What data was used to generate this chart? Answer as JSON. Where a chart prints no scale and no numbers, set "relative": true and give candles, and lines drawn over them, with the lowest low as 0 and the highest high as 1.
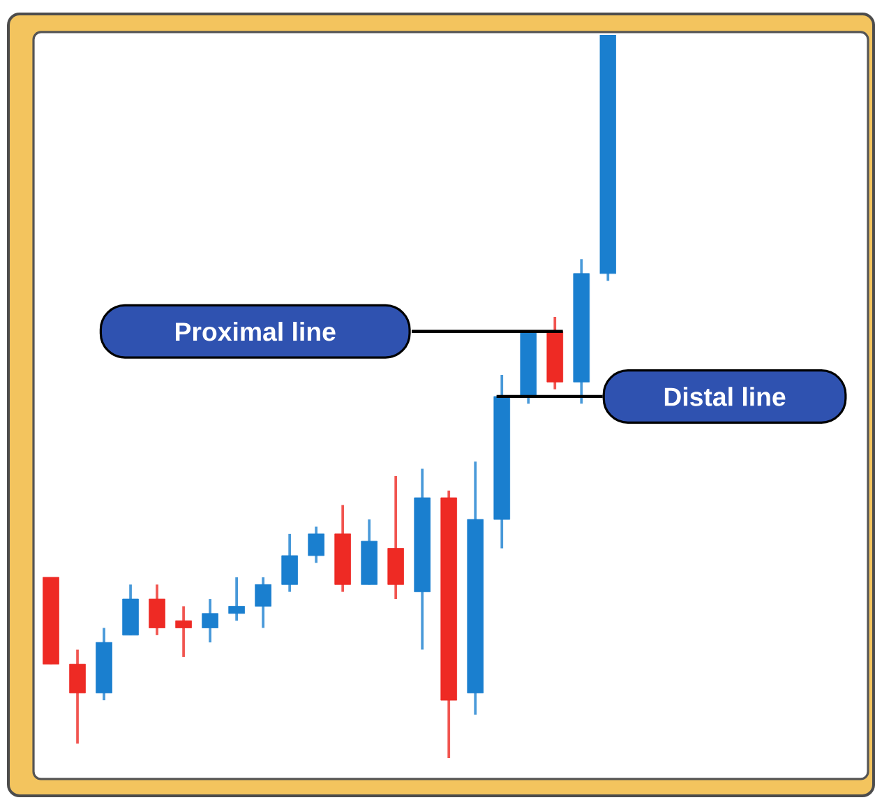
{
  "chart_data": {
    "type": "candlestick",
    "relative": true,
    "categories": [
      null,
      null,
      null,
      null,
      null,
      null,
      null,
      null,
      null,
      null,
      null,
      null,
      null,
      null,
      null,
      null,
      null,
      null,
      null,
      null,
      null,
      null
    ],
    "ohlc": [
      [
        0.25,
        0.25,
        0.13,
        0.13
      ],
      [
        0.13,
        0.15,
        0.02,
        0.09
      ],
      [
        0.09,
        0.18,
        0.08,
        0.16
      ],
      [
        0.17,
        0.24,
        0.17,
        0.22
      ],
      [
        0.22,
        0.24,
        0.17,
        0.18
      ],
      [
        0.19,
        0.21,
        0.14,
        0.18
      ],
      [
        0.18,
        0.22,
        0.16,
        0.2
      ],
      [
        0.2,
        0.25,
        0.19,
        0.21
      ],
      [
        0.21,
        0.25,
        0.18,
        0.24
      ],
      [
        0.24,
        0.31,
        0.23,
        0.28
      ],
      [
        0.28,
        0.32,
        0.27,
        0.31
      ],
      [
        0.31,
        0.35,
        0.23,
        0.24
      ],
      [
        0.24,
        0.33,
        0.24,
        0.3
      ],
      [
        0.29,
        0.39,
        0.22,
        0.24
      ],
      [
        0.23,
        0.4,
        0.15,
        0.36
      ],
      [
        0.36,
        0.37,
        0.0,
        0.08
      ],
      [
        0.09,
        0.41,
        0.06,
        0.33
      ],
      [
        0.33,
        0.53,
        0.29,
        0.5
      ],
      [
        0.5,
        0.59,
        0.49,
        0.59
      ],
      [
        0.59,
        0.61,
        0.51,
        0.52
      ],
      [
        0.52,
        0.69,
        0.49,
        0.67
      ],
      [
        0.67,
        1.0,
        0.66,
        1.0
      ]
    ],
    "colors": [
      "#ee2a24",
      "#ee2a24",
      "#1a7fcf",
      "#1a7fcf",
      "#ee2a24",
      "#ee2a24",
      "#1a7fcf",
      "#1a7fcf",
      "#1a7fcf",
      "#1a7fcf",
      "#1a7fcf",
      "#ee2a24",
      "#1a7fcf",
      "#ee2a24",
      "#1a7fcf",
      "#ee2a24",
      "#1a7fcf",
      "#1a7fcf",
      "#1a7fcf",
      "#ee2a24",
      "#1a7fcf",
      "#1a7fcf"
    ],
    "ref_lines": [
      {
        "axis": "y",
        "value": 0.59,
        "label": "Proximal line",
        "color": "#000000"
      },
      {
        "axis": "y",
        "value": 0.5,
        "label": "Distal line",
        "color": "#000000"
      }
    ]
  }
}
